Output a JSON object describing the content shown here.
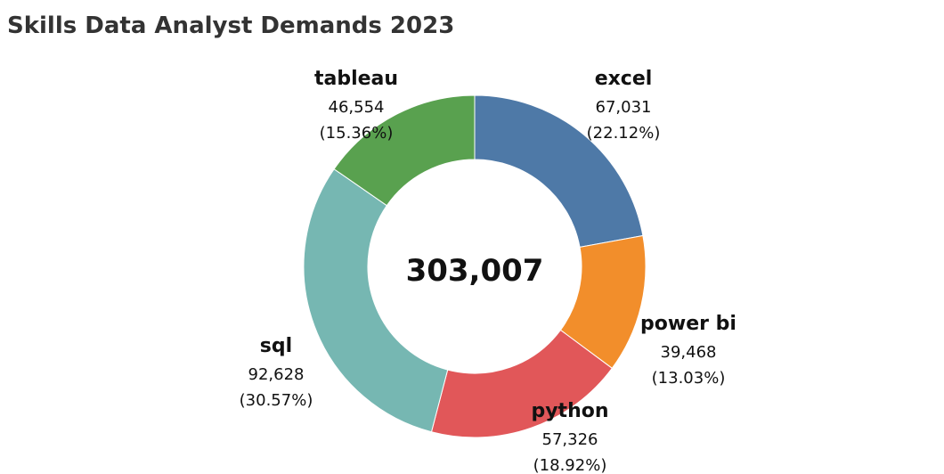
{
  "chart_data": {
    "type": "pie",
    "title": "Skills Data Analyst Demands 2023",
    "center_total": "303,007",
    "slices": [
      {
        "name": "excel",
        "value": 67031,
        "value_label": "67,031",
        "percent_label": "(22.12%)",
        "color": "#4e79a7"
      },
      {
        "name": "power bi",
        "value": 39468,
        "value_label": "39,468",
        "percent_label": "(13.03%)",
        "color": "#f28e2b"
      },
      {
        "name": "python",
        "value": 57326,
        "value_label": "57,326",
        "percent_label": "(18.92%)",
        "color": "#e15759"
      },
      {
        "name": "sql",
        "value": 92628,
        "value_label": "92,628",
        "percent_label": "(30.57%)",
        "color": "#76b7b2"
      },
      {
        "name": "tableau",
        "value": 46554,
        "value_label": "46,554",
        "percent_label": "(15.36%)",
        "color": "#59a14f"
      }
    ]
  }
}
